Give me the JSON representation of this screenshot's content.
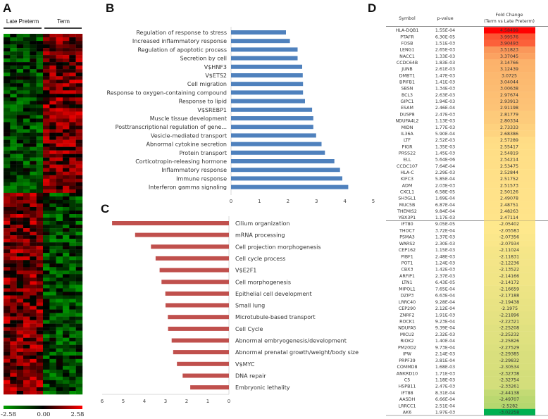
{
  "panels": {
    "a": "A",
    "b": "B",
    "c": "C",
    "d": "D"
  },
  "chart_data": [
    {
      "type": "heatmap",
      "panel": "A",
      "groups": [
        "Late Preterm",
        "Term"
      ],
      "colorscale": {
        "min": -2.58,
        "mid": 0.0,
        "max": 2.58,
        "min_label": "-2.58",
        "mid_label": "0.00",
        "max_label": "2.58",
        "min_color": "#00a000",
        "mid_color": "#000000",
        "max_color": "#ff0000"
      }
    },
    {
      "type": "bar",
      "panel": "B",
      "orientation": "horizontal",
      "categories": [
        "Regulation of response to stress",
        "Increased inflammatory response",
        "Regulation of apoptotic process",
        "Secretion by cell",
        "V$HNF3",
        "V$ETS2",
        "Cell migration",
        "Response to oxygen-containing compound",
        "Response to lipid",
        "V$SREBP1",
        "Muscle tissue development",
        "Posttranscriptional regulation of gene...",
        "Vesicle-mediated transport",
        "Abnormal cytokine secretion",
        "Protein transport",
        "Corticotropin-releasing hormone",
        "Inflammatory response",
        "Immune response",
        "Interferon gamma signaling"
      ],
      "values": [
        1.93,
        2.07,
        2.34,
        2.34,
        2.5,
        2.52,
        2.53,
        2.53,
        2.6,
        2.85,
        2.89,
        2.89,
        2.99,
        3.18,
        3.3,
        3.63,
        3.83,
        3.91,
        4.12
      ],
      "xlim": [
        0,
        5
      ],
      "xticks": [
        "0",
        "1",
        "2",
        "3",
        "4",
        "5"
      ],
      "color": "#4f81bd"
    },
    {
      "type": "bar",
      "panel": "C",
      "orientation": "horizontal-reversed",
      "categories": [
        "Cilium organization",
        "mRNA processing",
        "Cell projection morphogenesis",
        "Cell cycle process",
        "V$E2F1",
        "Cell morphogenesis",
        "Epithelial cell development",
        "Small lung",
        "Microtubule-based transport",
        "Cell Cycle",
        "Abnormal embryogenesis/development",
        "Abnormal prenatal growth/weight/body size",
        "V$MYC",
        "DNA repair",
        "Embryonic lethality"
      ],
      "values": [
        5.53,
        4.44,
        3.69,
        3.47,
        3.28,
        3.19,
        3.01,
        3.0,
        2.89,
        2.88,
        2.71,
        2.64,
        2.46,
        2.19,
        1.83
      ],
      "xlim": [
        6,
        0
      ],
      "xticks": [
        "6",
        "5",
        "4",
        "3",
        "2",
        "1",
        "0"
      ],
      "color": "#c0504d"
    }
  ],
  "table": {
    "headers": {
      "symbol": "Symbol",
      "pvalue": "p-value",
      "fold1": "Fold Change",
      "fold2": "(Term vs Late Preterm)"
    },
    "rows_up": [
      [
        "HLA-DQB1",
        "1.55E-04",
        "4.58499"
      ],
      [
        "PTAFR",
        "6.30E-05",
        "3.99576"
      ],
      [
        "FOSB",
        "1.51E-03",
        "3.90493"
      ],
      [
        "LENG1",
        "2.65E-03",
        "3.51823"
      ],
      [
        "NACC1",
        "1.33E-03",
        "3.37045"
      ],
      [
        "CCDC64B",
        "1.83E-03",
        "3.14766"
      ],
      [
        "JUNB",
        "2.61E-03",
        "3.12439"
      ],
      [
        "DMBT1",
        "1.47E-03",
        "3.0725"
      ],
      [
        "BPIFB1",
        "1.41E-03",
        "3.04044"
      ],
      [
        "SBSN",
        "1.34E-03",
        "3.00638"
      ],
      [
        "BCL3",
        "2.63E-03",
        "2.97674"
      ],
      [
        "GIPC1",
        "1.94E-03",
        "2.93913"
      ],
      [
        "ESAM",
        "2.46E-04",
        "2.91198"
      ],
      [
        "DUSP8",
        "2.47E-03",
        "2.81779"
      ],
      [
        "NDUFA4L2",
        "1.13E-03",
        "2.80334"
      ],
      [
        "MIDN",
        "1.77E-03",
        "2.73333"
      ],
      [
        "IL36A",
        "5.90E-04",
        "2.68386"
      ],
      [
        "LTF",
        "2.52E-03",
        "2.57289"
      ],
      [
        "PIGR",
        "1.35E-03",
        "2.55417"
      ],
      [
        "PRSS22",
        "1.45E-03",
        "2.54819"
      ],
      [
        "ELL",
        "5.64E-06",
        "2.54214"
      ],
      [
        "CCDC107",
        "7.64E-04",
        "2.53475"
      ],
      [
        "HLA-C",
        "2.29E-03",
        "2.52844"
      ],
      [
        "KIFC3",
        "5.85E-04",
        "2.51752"
      ],
      [
        "ADM",
        "2.03E-03",
        "2.51573"
      ],
      [
        "CXCL1",
        "6.58E-05",
        "2.50126"
      ],
      [
        "SH3GL1",
        "1.69E-04",
        "2.49078"
      ],
      [
        "MUC5B",
        "6.87E-04",
        "2.48751"
      ],
      [
        "THEMIS2",
        "9.84E-04",
        "2.48263"
      ],
      [
        "YBX3P1",
        "1.17E-03",
        "2.47114"
      ]
    ],
    "rows_down": [
      [
        "IFT80",
        "9.05E-05",
        "-2.05402"
      ],
      [
        "THOC7",
        "3.72E-04",
        "-2.05583"
      ],
      [
        "PSMA3",
        "1.37E-03",
        "-2.07356"
      ],
      [
        "WARS2",
        "2.30E-03",
        "-2.07934"
      ],
      [
        "CEP162",
        "1.15E-03",
        "-2.11024"
      ],
      [
        "PIBF1",
        "2.48E-03",
        "-2.11831"
      ],
      [
        "POT1",
        "1.24E-03",
        "-2.12236"
      ],
      [
        "CBX3",
        "1.42E-03",
        "-2.13522"
      ],
      [
        "ARFIP1",
        "2.37E-03",
        "-2.14166"
      ],
      [
        "LTN1",
        "6.43E-05",
        "-2.14172"
      ],
      [
        "MIPOL1",
        "7.65E-04",
        "-2.16659"
      ],
      [
        "DZIP3",
        "6.63E-04",
        "-2.17188"
      ],
      [
        "LRRC40",
        "9.28E-04",
        "-2.19438"
      ],
      [
        "CEP290",
        "2.12E-04",
        "-2.1975"
      ],
      [
        "ZNRF2",
        "1.91E-03",
        "-2.21896"
      ],
      [
        "ROCK1",
        "9.23E-04",
        "-2.22321"
      ],
      [
        "NDUFA5",
        "9.39E-04",
        "-2.25208"
      ],
      [
        "MICU2",
        "2.32E-03",
        "-2.25232"
      ],
      [
        "RIOK2",
        "1.40E-04",
        "-2.25826"
      ],
      [
        "PM20D2",
        "9.73E-04",
        "-2.27529"
      ],
      [
        "IPW",
        "2.14E-03",
        "-2.29385"
      ],
      [
        "PRPF39",
        "3.81E-04",
        "-2.29832"
      ],
      [
        "COMMD8",
        "1.68E-03",
        "-2.30534"
      ],
      [
        "ANKRD10",
        "1.71E-03",
        "-2.32738"
      ],
      [
        "C5",
        "1.18E-03",
        "-2.32754"
      ],
      [
        "HSPB11",
        "2.47E-03",
        "-2.33261"
      ],
      [
        "IFT88",
        "8.31E-04",
        "-2.44138"
      ],
      [
        "AASDH",
        "6.66E-04",
        "-2.49707"
      ],
      [
        "LRRCC1",
        "2.51E-04",
        "-2.5282"
      ],
      [
        "AK6",
        "1.97E-03",
        "-3.02258"
      ]
    ]
  }
}
